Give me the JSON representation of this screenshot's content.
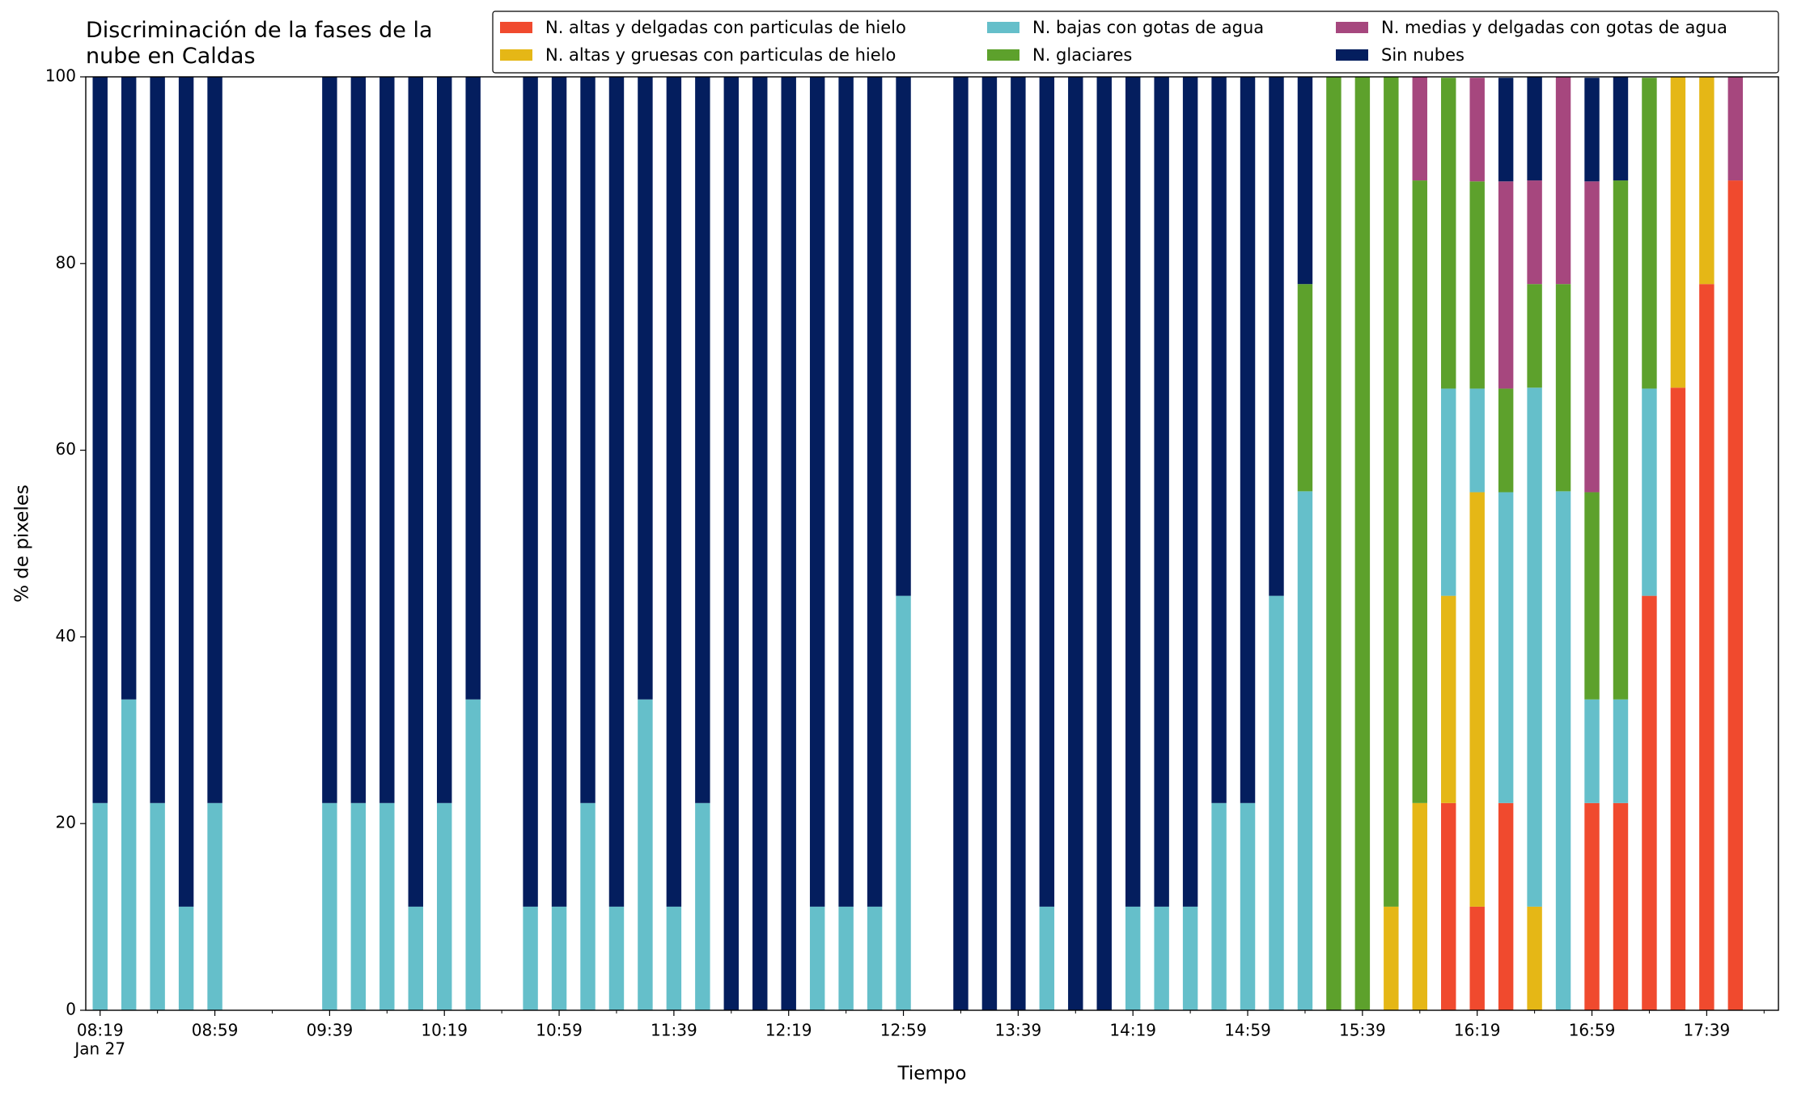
{
  "chart_data": {
    "type": "stacked_bar",
    "title": "Discriminación de la fases de la\nnube en Caldas",
    "xlabel": "Tiempo",
    "ylabel": "% de pixeles",
    "x": [
      "08:19",
      "08:29",
      "08:39",
      "08:49",
      "08:59",
      "09:39",
      "09:49",
      "09:59",
      "10:09",
      "10:19",
      "10:29",
      "10:49",
      "10:59",
      "11:09",
      "11:19",
      "11:29",
      "11:39",
      "11:49",
      "11:59",
      "12:09",
      "12:19",
      "12:29",
      "12:39",
      "12:49",
      "12:59",
      "13:19",
      "13:29",
      "13:39",
      "13:49",
      "13:59",
      "14:09",
      "14:19",
      "14:29",
      "14:39",
      "14:49",
      "14:59",
      "15:09",
      "15:19",
      "15:29",
      "15:39",
      "15:49",
      "15:59",
      "16:09",
      "16:19",
      "16:29",
      "16:39",
      "16:49",
      "16:59",
      "17:09",
      "17:19",
      "17:29",
      "17:39",
      "17:49"
    ],
    "xlim": [
      "08:14",
      "18:04"
    ],
    "xticks": [
      "08:19",
      "08:59",
      "09:39",
      "10:19",
      "10:59",
      "11:39",
      "12:19",
      "12:59",
      "13:39",
      "14:19",
      "14:59",
      "15:39",
      "16:19",
      "16:59",
      "17:39"
    ],
    "xtick_sublabel": "Jan 27",
    "xminorticks": [
      "08:39",
      "09:19",
      "09:59",
      "10:39",
      "11:19",
      "11:59",
      "12:39",
      "13:19",
      "13:59",
      "14:39",
      "15:19",
      "15:59",
      "16:39",
      "17:19",
      "17:59"
    ],
    "ylim": [
      0,
      100
    ],
    "yticks": [
      0,
      20,
      40,
      60,
      80,
      100
    ],
    "grid": false,
    "legend": "top-right",
    "series": [
      {
        "name": "N. altas y delgadas con particulas de hielo",
        "color": "#f04a2e",
        "values": [
          0,
          0,
          0,
          0,
          0,
          0,
          0,
          0,
          0,
          0,
          0,
          0,
          0,
          0,
          0,
          0,
          0,
          0,
          0,
          0,
          0,
          0,
          0,
          0,
          0,
          0,
          0,
          0,
          0,
          0,
          0,
          0,
          0,
          0,
          0,
          0,
          0,
          0,
          0,
          0,
          0,
          0,
          22.2,
          11.1,
          22.2,
          0,
          0,
          22.2,
          22.2,
          44.4,
          66.7,
          77.8,
          88.9
        ]
      },
      {
        "name": "N. altas y gruesas con particulas de hielo",
        "color": "#e5b716",
        "values": [
          0,
          0,
          0,
          0,
          0,
          0,
          0,
          0,
          0,
          0,
          0,
          0,
          0,
          0,
          0,
          0,
          0,
          0,
          0,
          0,
          0,
          0,
          0,
          0,
          0,
          0,
          0,
          0,
          0,
          0,
          0,
          0,
          0,
          0,
          0,
          0,
          0,
          0,
          0,
          0,
          11.1,
          22.2,
          22.2,
          44.4,
          0,
          11.1,
          0,
          0,
          0,
          0,
          33.3,
          22.2,
          0
        ]
      },
      {
        "name": "N. bajas con gotas de agua",
        "color": "#65bfca",
        "values": [
          22.2,
          33.3,
          22.2,
          11.1,
          22.2,
          22.2,
          22.2,
          22.2,
          11.1,
          22.2,
          33.3,
          11.1,
          11.1,
          22.2,
          11.1,
          33.3,
          11.1,
          22.2,
          0,
          0,
          0,
          11.1,
          11.1,
          11.1,
          44.4,
          0,
          0,
          0,
          11.1,
          0,
          0,
          11.1,
          11.1,
          11.1,
          22.2,
          22.2,
          44.4,
          55.6,
          0,
          0,
          0,
          0,
          22.2,
          11.1,
          33.3,
          55.6,
          55.6,
          11.1,
          11.1,
          22.2,
          0,
          0,
          0
        ]
      },
      {
        "name": "N. glaciares",
        "color": "#5da12c",
        "values": [
          0,
          0,
          0,
          0,
          0,
          0,
          0,
          0,
          0,
          0,
          0,
          0,
          0,
          0,
          0,
          0,
          0,
          0,
          0,
          0,
          0,
          0,
          0,
          0,
          0,
          0,
          0,
          0,
          0,
          0,
          0,
          0,
          0,
          0,
          0,
          0,
          0,
          22.2,
          100,
          100,
          88.9,
          66.7,
          33.3,
          22.2,
          11.1,
          11.1,
          22.2,
          22.2,
          55.6,
          33.3,
          0,
          0,
          0
        ]
      },
      {
        "name": "N. medias y delgadas con gotas de agua",
        "color": "#a6477e",
        "values": [
          0,
          0,
          0,
          0,
          0,
          0,
          0,
          0,
          0,
          0,
          0,
          0,
          0,
          0,
          0,
          0,
          0,
          0,
          0,
          0,
          0,
          0,
          0,
          0,
          0,
          0,
          0,
          0,
          0,
          0,
          0,
          0,
          0,
          0,
          0,
          0,
          0,
          0,
          0,
          0,
          0,
          11.1,
          0,
          11.1,
          22.2,
          11.1,
          22.2,
          33.3,
          0,
          0,
          0,
          0,
          11.1
        ]
      },
      {
        "name": "Sin nubes",
        "color": "#041e5e",
        "values": [
          77.8,
          66.7,
          77.8,
          88.9,
          77.8,
          77.8,
          77.8,
          77.8,
          88.9,
          77.8,
          66.7,
          88.9,
          88.9,
          77.8,
          88.9,
          66.7,
          88.9,
          77.8,
          100,
          100,
          100,
          88.9,
          88.9,
          88.9,
          55.6,
          100,
          100,
          100,
          88.9,
          100,
          100,
          88.9,
          88.9,
          88.9,
          77.8,
          77.8,
          55.6,
          22.2,
          0,
          0,
          0,
          0,
          0,
          0,
          11.1,
          11.1,
          0,
          11.1,
          11.1,
          0,
          0,
          0,
          0
        ]
      }
    ]
  }
}
